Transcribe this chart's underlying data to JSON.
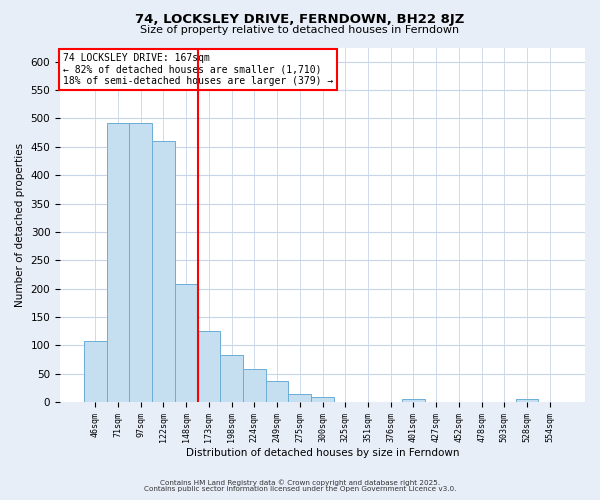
{
  "title": "74, LOCKSLEY DRIVE, FERNDOWN, BH22 8JZ",
  "subtitle": "Size of property relative to detached houses in Ferndown",
  "xlabel": "Distribution of detached houses by size in Ferndown",
  "ylabel": "Number of detached properties",
  "bar_labels": [
    "46sqm",
    "71sqm",
    "97sqm",
    "122sqm",
    "148sqm",
    "173sqm",
    "198sqm",
    "224sqm",
    "249sqm",
    "275sqm",
    "300sqm",
    "325sqm",
    "351sqm",
    "376sqm",
    "401sqm",
    "427sqm",
    "452sqm",
    "478sqm",
    "503sqm",
    "528sqm",
    "554sqm"
  ],
  "bar_values": [
    107,
    492,
    492,
    460,
    208,
    125,
    83,
    58,
    37,
    15,
    10,
    0,
    0,
    0,
    5,
    0,
    0,
    0,
    0,
    5,
    0
  ],
  "bar_color": "#c5dff0",
  "bar_edge_color": "#6baed6",
  "vline_x": 4.5,
  "vline_color": "red",
  "ylim": [
    0,
    625
  ],
  "yticks": [
    0,
    50,
    100,
    150,
    200,
    250,
    300,
    350,
    400,
    450,
    500,
    550,
    600
  ],
  "annotation_title": "74 LOCKSLEY DRIVE: 167sqm",
  "annotation_line1": "← 82% of detached houses are smaller (1,710)",
  "annotation_line2": "18% of semi-detached houses are larger (379) →",
  "annotation_box_color": "white",
  "annotation_box_edge": "red",
  "footer1": "Contains HM Land Registry data © Crown copyright and database right 2025.",
  "footer2": "Contains public sector information licensed under the Open Government Licence v3.0.",
  "bg_color": "#e8eef8",
  "plot_bg_color": "#ffffff",
  "grid_color": "#c8d4e8"
}
